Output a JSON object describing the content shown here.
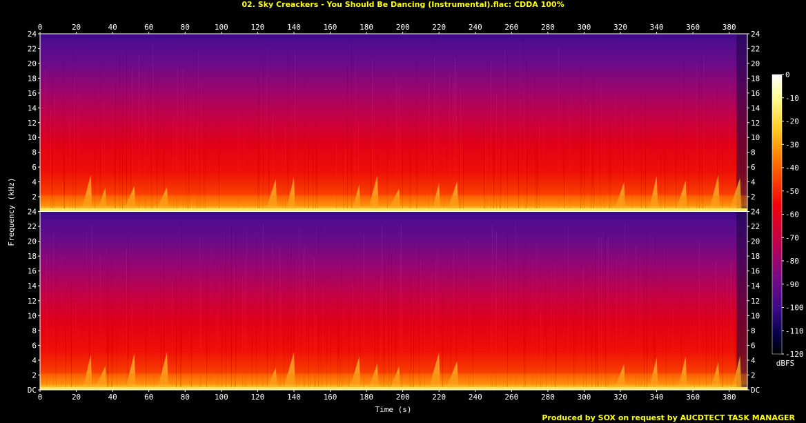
{
  "chart_data": {
    "type": "heatmap",
    "title": "02. Sky Creackers - You Should Be Dancing (Instrumental).flac: CDDA 100%",
    "xlabel": "Time (s)",
    "ylabel": "Frequency (kHz)",
    "xlim": [
      0,
      390
    ],
    "x_ticks": [
      0,
      20,
      40,
      60,
      80,
      100,
      120,
      140,
      160,
      180,
      200,
      220,
      240,
      260,
      280,
      300,
      320,
      340,
      360,
      380
    ],
    "ylim": [
      0,
      24
    ],
    "y_ticks": [
      "DC",
      "2",
      "4",
      "6",
      "8",
      "10",
      "12",
      "14",
      "16",
      "18",
      "20",
      "22",
      "24"
    ],
    "channels": 2,
    "colorbar": {
      "label": "dBFS",
      "ticks": [
        "0",
        "-10",
        "-20",
        "-30",
        "-40",
        "-50",
        "-60",
        "-70",
        "-80",
        "-90",
        "-100",
        "-110",
        "-120"
      ],
      "range": [
        -120,
        0
      ],
      "colors": [
        "#000000",
        "#06004a",
        "#3a0a86",
        "#7a0a86",
        "#c0004c",
        "#f0000a",
        "#ff6400",
        "#ffc81e",
        "#ffff96",
        "#ffffff"
      ]
    },
    "footer": "Produced by SOX on request by AUCDTECT TASK MANAGER",
    "title_color": "#ffff00",
    "text_color": "#ffffff"
  }
}
